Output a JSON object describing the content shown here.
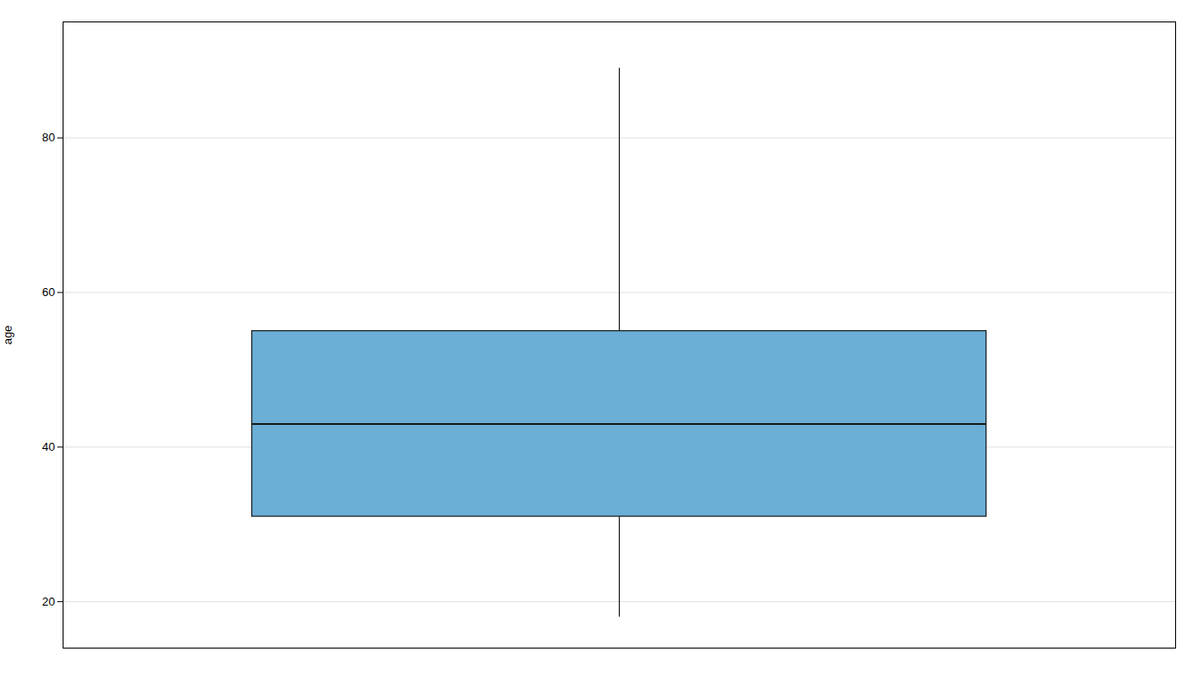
{
  "chart_data": {
    "type": "box",
    "ylabel": "age",
    "q1": 31,
    "median": 43,
    "q3": 55,
    "whisker_low": 18,
    "whisker_high": 89,
    "color": "#6BAED6",
    "ylim": [
      14,
      95
    ],
    "yticks": [
      20,
      40,
      60,
      80
    ],
    "grid": true,
    "tick_labels": "y"
  }
}
